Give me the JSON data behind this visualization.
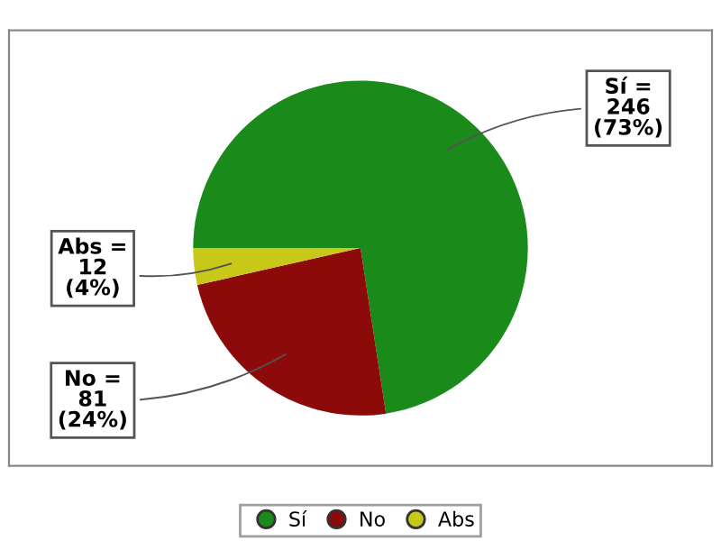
{
  "chart_data": {
    "type": "pie",
    "categories": [
      "Sí",
      "No",
      "Abs"
    ],
    "values": [
      246,
      81,
      12
    ],
    "colors": [
      "#1a8a1a",
      "#8c0a0a",
      "#c8c818"
    ],
    "value_labels": [
      "Sí =\n246\n(73%)",
      "No =\n81\n(24%)",
      "Abs =\n12\n(4%)"
    ],
    "legend": "bottom"
  }
}
